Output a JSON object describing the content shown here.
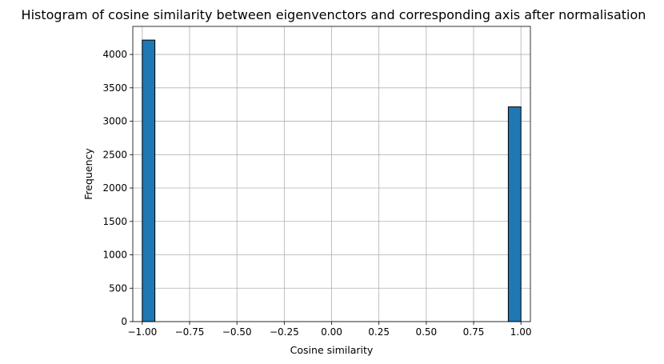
{
  "chart_data": {
    "type": "bar",
    "title": "Histogram of cosine similarity between eigenvenctors and corresponding axis after normalisation",
    "xlabel": "Cosine similarity",
    "ylabel": "Frequency",
    "xlim": [
      -1.05,
      1.05
    ],
    "ylim": [
      0,
      4420
    ],
    "xticks": [
      -1.0,
      -0.75,
      -0.5,
      -0.25,
      0.0,
      0.25,
      0.5,
      0.75,
      1.0
    ],
    "xtick_labels": [
      "−1.00",
      "−0.75",
      "−0.50",
      "−0.25",
      "0.00",
      "0.25",
      "0.50",
      "0.75",
      "1.00"
    ],
    "yticks": [
      0,
      500,
      1000,
      1500,
      2000,
      2500,
      3000,
      3500,
      4000
    ],
    "ytick_labels": [
      "0",
      "500",
      "1000",
      "1500",
      "2000",
      "2500",
      "3000",
      "3500",
      "4000"
    ],
    "grid": true,
    "bins": {
      "start": -1.0,
      "end": 1.0,
      "count": 30
    },
    "values": [
      4215,
      0,
      0,
      0,
      0,
      0,
      0,
      0,
      0,
      0,
      0,
      0,
      0,
      0,
      0,
      0,
      0,
      0,
      0,
      0,
      0,
      0,
      0,
      0,
      0,
      0,
      0,
      0,
      0,
      3215
    ],
    "colors": {
      "bar": "#1f77b4",
      "edge": "#000000",
      "grid": "#b0b0b0"
    }
  }
}
